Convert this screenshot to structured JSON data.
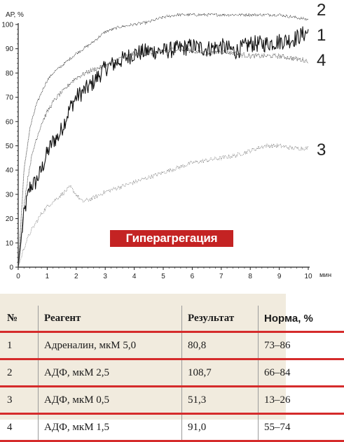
{
  "chart_data": {
    "type": "line",
    "ylabel": "АР, %",
    "xlabel": "мин",
    "xlim": [
      0,
      10
    ],
    "ylim": [
      0,
      100
    ],
    "x_ticks": [
      0,
      1,
      2,
      3,
      4,
      5,
      6,
      7,
      8,
      9,
      10
    ],
    "y_ticks": [
      0,
      10,
      20,
      30,
      40,
      50,
      60,
      70,
      80,
      90,
      100
    ],
    "grid": false,
    "series": [
      {
        "name": "1",
        "x": [
          0,
          0.2,
          0.4,
          0.6,
          0.8,
          1.0,
          1.2,
          1.4,
          1.6,
          1.8,
          2.0,
          2.5,
          3.0,
          3.5,
          4.0,
          4.5,
          5.0,
          5.5,
          6.0,
          6.5,
          7.0,
          7.5,
          8.0,
          8.5,
          9.0,
          9.5,
          10.0
        ],
        "y": [
          0,
          22,
          33,
          35,
          40,
          47,
          52,
          54,
          60,
          66,
          70,
          75,
          82,
          85,
          88,
          89,
          89,
          90,
          91,
          90,
          91,
          89,
          92,
          92,
          93,
          94,
          97
        ]
      },
      {
        "name": "2",
        "x": [
          0,
          0.2,
          0.4,
          0.6,
          0.8,
          1.0,
          1.2,
          1.4,
          1.6,
          1.8,
          2.0,
          2.5,
          3.0,
          3.5,
          4.0,
          4.5,
          5.0,
          5.5,
          6.0,
          6.5,
          7.0,
          7.5,
          8.0,
          8.5,
          9.0,
          9.5,
          10.0
        ],
        "y": [
          0,
          40,
          57,
          66,
          72,
          77,
          80,
          82,
          84,
          86,
          88,
          92,
          97,
          99,
          100,
          101,
          103,
          104,
          104,
          104,
          104,
          104,
          104,
          104,
          104,
          103,
          102
        ]
      },
      {
        "name": "3",
        "x": [
          0,
          0.2,
          0.4,
          0.6,
          0.8,
          1.0,
          1.2,
          1.4,
          1.6,
          1.8,
          2.0,
          2.2,
          2.5,
          3.0,
          3.5,
          4.0,
          4.5,
          5.0,
          5.5,
          6.0,
          6.5,
          7.0,
          7.5,
          8.0,
          8.5,
          9.0,
          9.5,
          10.0
        ],
        "y": [
          0,
          8,
          14,
          18,
          22,
          25,
          27,
          29,
          31,
          33,
          30,
          27,
          28,
          31,
          33,
          35,
          37,
          39,
          41,
          43,
          44,
          45,
          46,
          48,
          50,
          50,
          49,
          49
        ]
      },
      {
        "name": "4",
        "x": [
          0,
          0.2,
          0.4,
          0.6,
          0.8,
          1.0,
          1.2,
          1.4,
          1.6,
          1.8,
          2.0,
          2.5,
          3.0,
          3.5,
          4.0,
          4.5,
          5.0,
          5.5,
          6.0,
          6.5,
          7.0,
          7.5,
          8.0,
          8.5,
          9.0,
          9.5,
          10.0
        ],
        "y": [
          0,
          26,
          42,
          52,
          59,
          64,
          68,
          71,
          73,
          76,
          78,
          81,
          83,
          86,
          88,
          88,
          89,
          90,
          89,
          88,
          89,
          88,
          87,
          87,
          87,
          86,
          85
        ]
      }
    ]
  },
  "badge": "Гиперагрегация",
  "table": {
    "headers": {
      "num": "№",
      "reagent": "Реагент",
      "result": "Результат",
      "norm": "Норма, %"
    },
    "rows": [
      {
        "num": "1",
        "reagent": "Адреналин, мкМ 5,0",
        "result": "80,8",
        "norm": "73–86"
      },
      {
        "num": "2",
        "reagent": "АДФ, мкМ 2,5",
        "result": "108,7",
        "norm": "66–84"
      },
      {
        "num": "3",
        "reagent": "АДФ, мкМ 0,5",
        "result": "51,3",
        "norm": "13–26"
      },
      {
        "num": "4",
        "reagent": "АДФ, мкМ 1,5",
        "result": "91,0",
        "norm": "55–74"
      }
    ]
  }
}
